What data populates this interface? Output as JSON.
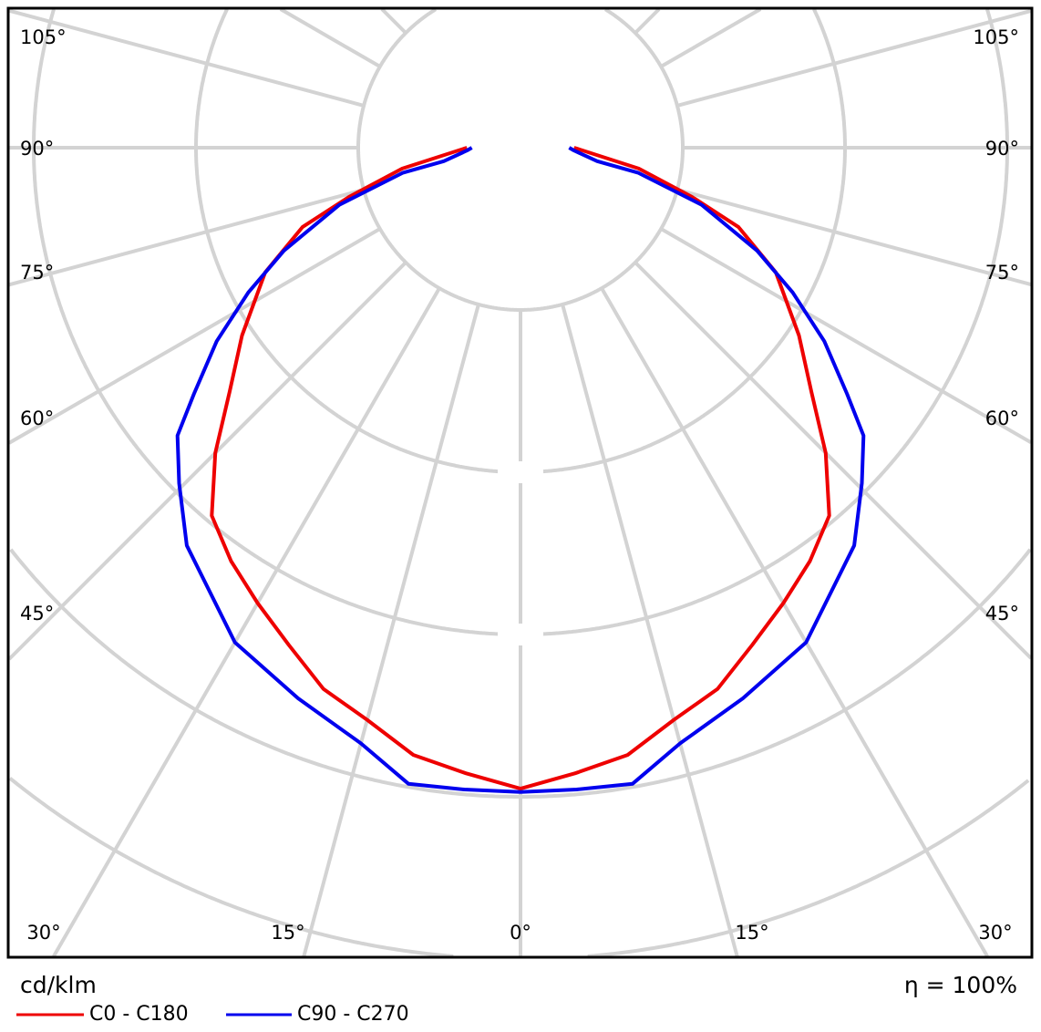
{
  "chart_data": {
    "type": "polar-line",
    "unit_label": "cd/klm",
    "efficiency_label": "η = 100%",
    "angle_labels_side": [
      "105°",
      "90°",
      "75°",
      "60°",
      "45°"
    ],
    "angle_labels_bottom": [
      "30°",
      "15°",
      "0°",
      "15°",
      "30°"
    ],
    "grid": true,
    "angle_step_deg": 15,
    "intensity_unit_note": "",
    "series": [
      {
        "name": "C0 - C180",
        "color": "#ee0000",
        "gamma": [
          0,
          5,
          10,
          15,
          20,
          25,
          30,
          35,
          40,
          45,
          50,
          56,
          64,
          70,
          74,
          80,
          90
        ],
        "intensity": [
          3.95,
          3.87,
          3.8,
          3.65,
          3.55,
          3.38,
          3.24,
          3.11,
          2.96,
          2.66,
          2.34,
          2.07,
          1.75,
          1.43,
          1.1,
          0.74,
          0.33
        ]
      },
      {
        "name": "C90 - C270",
        "color": "#0000ee",
        "gamma": [
          0,
          5,
          10,
          15,
          22,
          30,
          40,
          45.5,
          50,
          53,
          57.5,
          62,
          66.5,
          72.5,
          78,
          80,
          87,
          90
        ],
        "intensity": [
          3.97,
          3.97,
          3.98,
          3.8,
          3.66,
          3.52,
          3.2,
          2.95,
          2.76,
          2.52,
          2.22,
          1.9,
          1.59,
          1.17,
          0.74,
          0.48,
          0.33,
          0.3
        ]
      }
    ]
  }
}
